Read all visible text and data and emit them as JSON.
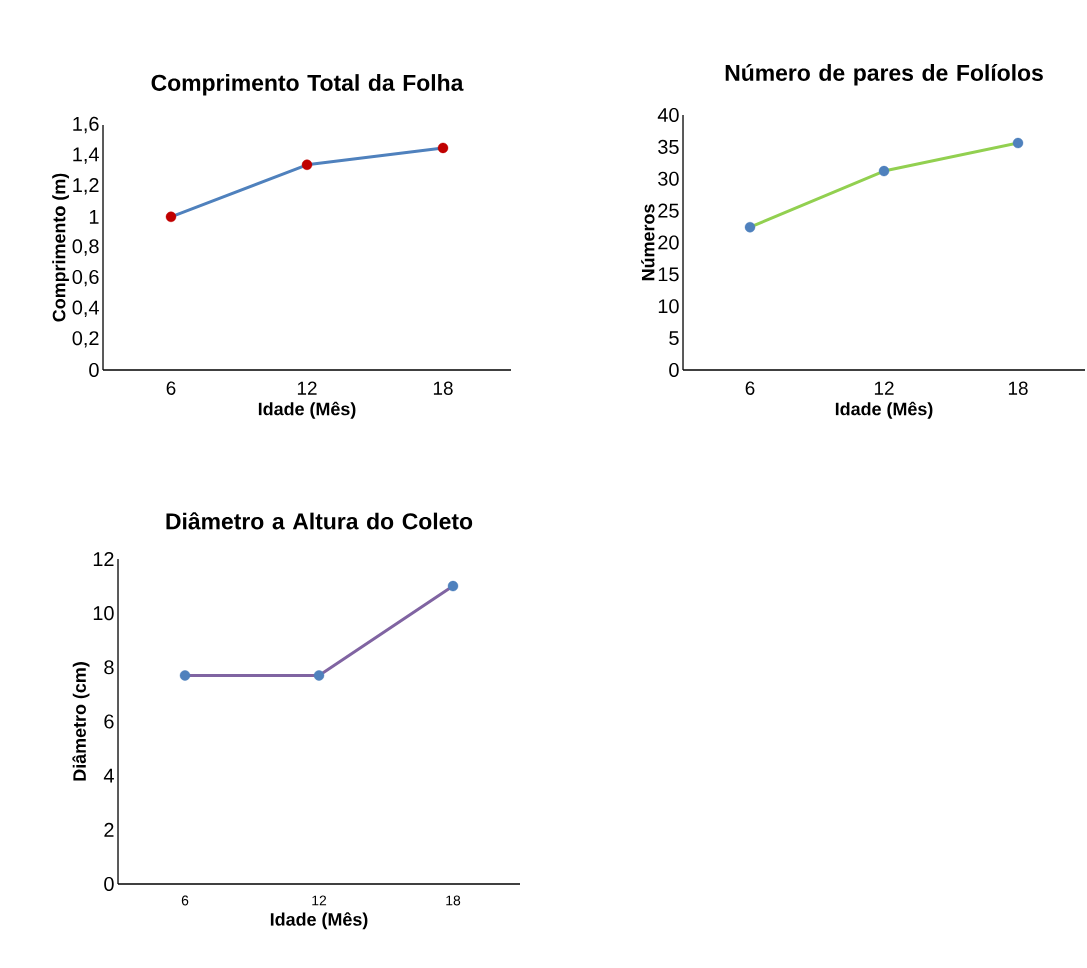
{
  "chart_data": [
    {
      "type": "line",
      "title": "Comprimento Total da Folha",
      "xlabel": "Idade (Mês)",
      "ylabel": "Comprimento (m)",
      "categories": [
        "6",
        "12",
        "18"
      ],
      "grid": false,
      "ylim": [
        0,
        1.6
      ],
      "yticks": [
        0,
        {
          "value": 0.2,
          "label": "0,2"
        },
        {
          "value": 0.4,
          "label": "0,4"
        },
        {
          "value": 0.6,
          "label": "0,6"
        },
        {
          "value": 0.8,
          "label": "0,8"
        },
        1,
        {
          "value": 1.2,
          "label": "1,2"
        },
        {
          "value": 1.4,
          "label": "1,4"
        },
        {
          "value": 1.6,
          "label": "1,6"
        }
      ],
      "series": [
        {
          "color": "#4f81bd",
          "marker": "none",
          "values": [
            1.0,
            1.34,
            1.45
          ]
        },
        {
          "type": "scatter",
          "color": "#c00000",
          "marker": "circle",
          "values": [
            1.0,
            1.34,
            1.45
          ]
        }
      ]
    },
    {
      "type": "line",
      "title": "Número de pares de Folíolos",
      "xlabel": "Idade (Mês)",
      "ylabel": "Números",
      "categories": [
        "6",
        "12",
        "18"
      ],
      "grid": false,
      "ylim": [
        0,
        40
      ],
      "yticks": [
        0,
        5,
        10,
        15,
        20,
        25,
        30,
        35,
        40
      ],
      "series": [
        {
          "color": "#92d050",
          "marker": "none",
          "values": [
            22.4,
            31.2,
            35.6
          ]
        },
        {
          "type": "scatter",
          "color": "#4f81bd",
          "marker": "circle",
          "values": [
            22.4,
            31.2,
            35.6
          ]
        }
      ]
    },
    {
      "type": "line",
      "title": "Diâmetro a Altura do Coleto",
      "xlabel": "Idade (Mês)",
      "ylabel": "Diâmetro (cm)",
      "categories": [
        "6",
        "12",
        "18"
      ],
      "grid": false,
      "ylim": [
        0,
        12
      ],
      "yticks": [
        0,
        2,
        4,
        6,
        8,
        10,
        12
      ],
      "series": [
        {
          "color": "#8064a2",
          "marker": "none",
          "values": [
            7.7,
            7.7,
            11
          ]
        },
        {
          "type": "scatter",
          "color": "#4f81bd",
          "marker": "circle",
          "values": [
            7.7,
            7.7,
            11
          ]
        }
      ]
    }
  ]
}
